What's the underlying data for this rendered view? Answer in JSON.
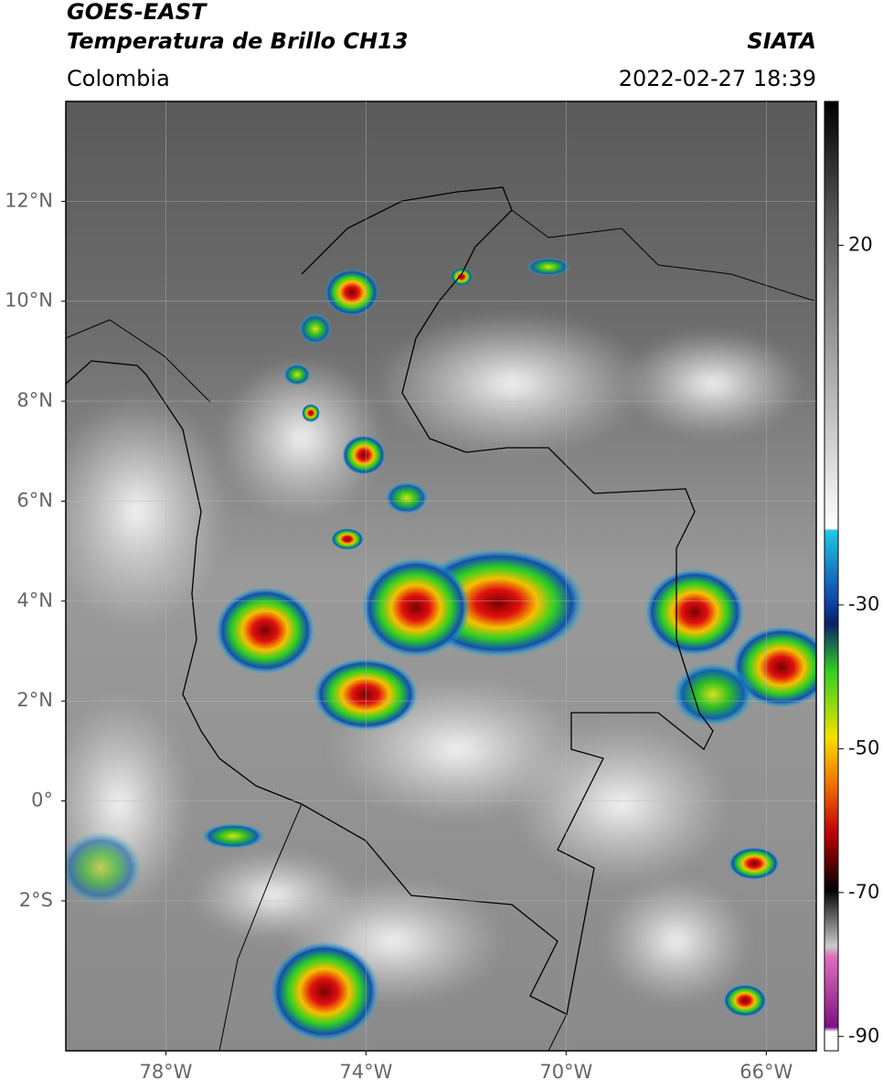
{
  "header": {
    "title": "GOES-EAST",
    "subtitle": "Temperatura de Brillo CH13",
    "region": "Colombia",
    "source": "SIATA",
    "datetime": "2022-02-27 18:39"
  },
  "map": {
    "lonlim": [
      -80,
      -65
    ],
    "latlim": [
      -5,
      14
    ],
    "grid": true,
    "xticks": [
      {
        "value": -78,
        "label": "78°W"
      },
      {
        "value": -74,
        "label": "74°W"
      },
      {
        "value": -70,
        "label": "70°W"
      },
      {
        "value": -66,
        "label": "66°W"
      }
    ],
    "yticks": [
      {
        "value": 12,
        "label": "12°N"
      },
      {
        "value": 10,
        "label": "10°N"
      },
      {
        "value": 8,
        "label": "8°N"
      },
      {
        "value": 6,
        "label": "6°N"
      },
      {
        "value": 4,
        "label": "4°N"
      },
      {
        "value": 2,
        "label": "2°N"
      },
      {
        "value": 0,
        "label": "0°"
      },
      {
        "value": -2,
        "label": "2°S"
      }
    ]
  },
  "colorbar": {
    "lim": [
      -92,
      40
    ],
    "ticks": [
      20,
      -30,
      -50,
      -70,
      -90
    ]
  }
}
